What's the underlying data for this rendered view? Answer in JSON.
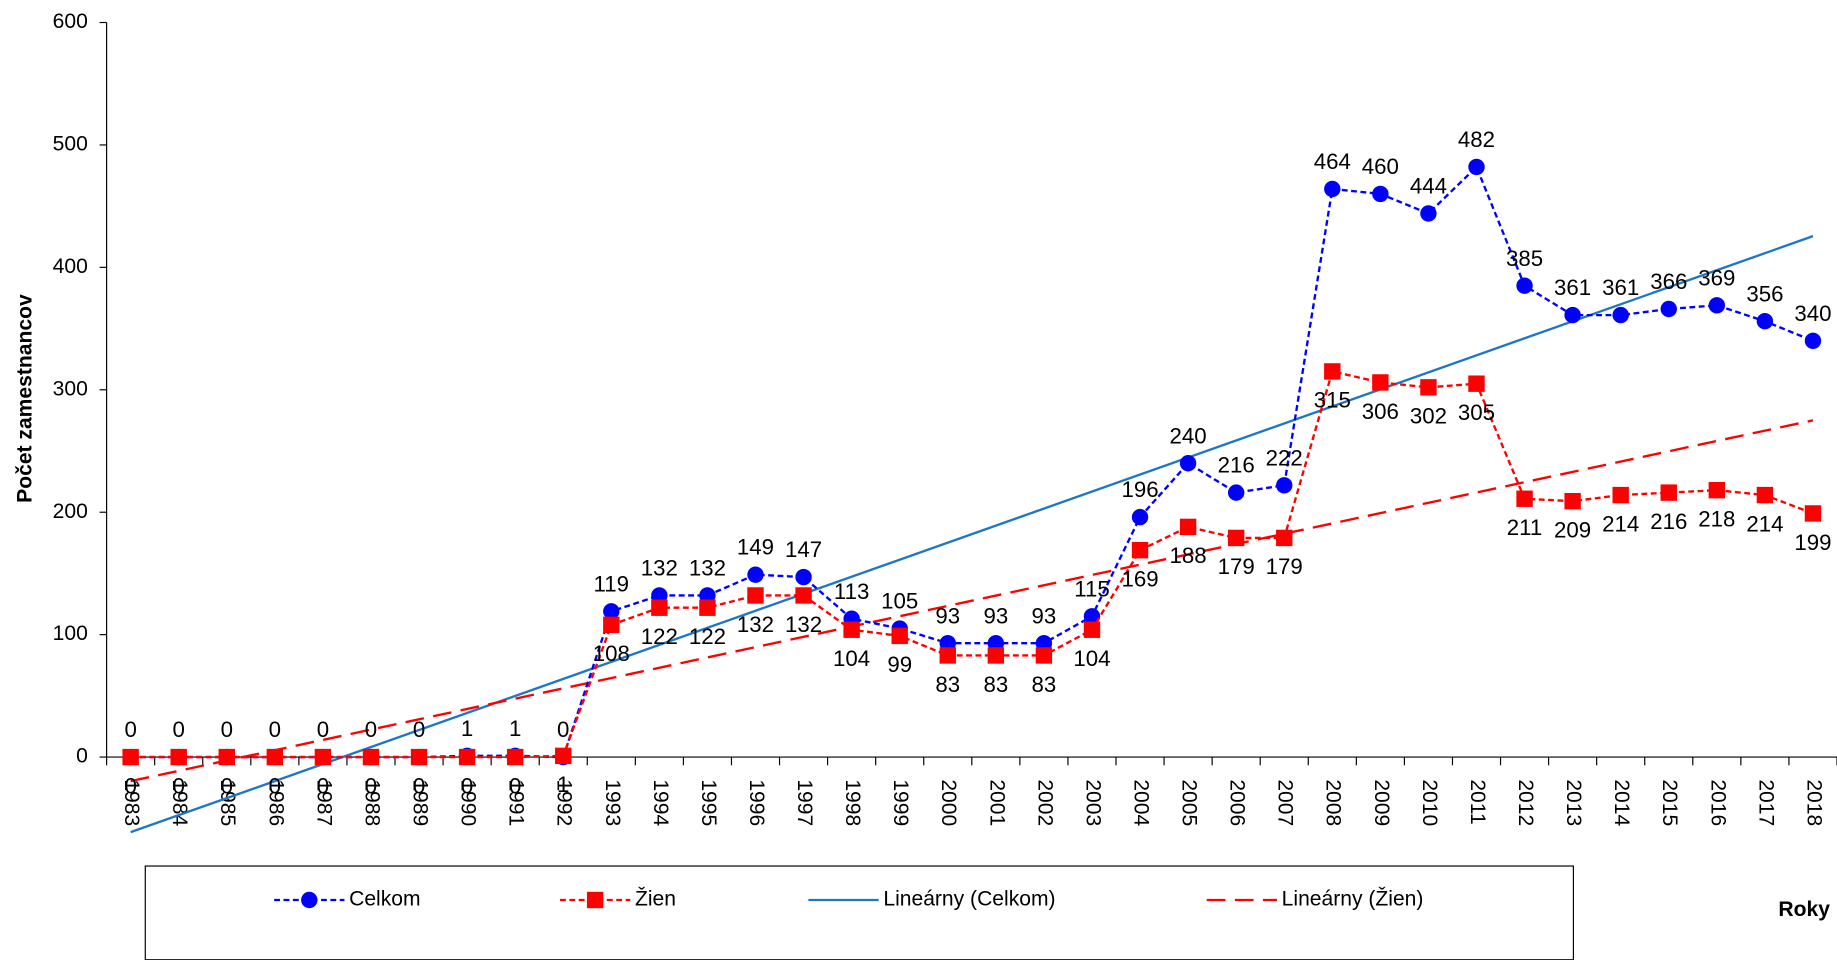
{
  "chart_data": {
    "type": "line",
    "x_label": "Roky",
    "y_label": "Počet zamestnancov",
    "categories": [
      "1983",
      "1984",
      "1985",
      "1986",
      "1987",
      "1988",
      "1989",
      "1990",
      "1991",
      "1992",
      "1993",
      "1994",
      "1995",
      "1996",
      "1997",
      "1998",
      "1999",
      "2000",
      "2001",
      "2002",
      "2003",
      "2004",
      "2005",
      "2006",
      "2007",
      "2008",
      "2009",
      "2010",
      "2011",
      "2012",
      "2013",
      "2014",
      "2015",
      "2016",
      "2017",
      "2018"
    ],
    "series": [
      {
        "name": "Celkom",
        "color": "#0000ff",
        "marker": "circle",
        "values": [
          0,
          0,
          0,
          0,
          0,
          0,
          0,
          1,
          1,
          0,
          119,
          132,
          132,
          149,
          147,
          113,
          105,
          93,
          93,
          93,
          115,
          196,
          240,
          216,
          222,
          464,
          460,
          444,
          482,
          385,
          361,
          361,
          366,
          369,
          356,
          340
        ]
      },
      {
        "name": "Žien",
        "color": "#ff0000",
        "marker": "square",
        "values": [
          0,
          0,
          0,
          0,
          0,
          0,
          0,
          0,
          0,
          1,
          108,
          122,
          122,
          132,
          132,
          104,
          99,
          83,
          83,
          83,
          104,
          169,
          188,
          179,
          179,
          315,
          306,
          302,
          305,
          211,
          209,
          214,
          216,
          218,
          214,
          199
        ]
      }
    ],
    "trendlines": [
      {
        "name": "Lineárny (Celkom)",
        "color": "#1f77c4",
        "dash": false
      },
      {
        "name": "Lineárny (Žien)",
        "color": "#ff0000",
        "dash": true
      }
    ],
    "ylim": [
      0,
      600
    ],
    "yticks": [
      0,
      100,
      200,
      300,
      400,
      500,
      600
    ]
  }
}
